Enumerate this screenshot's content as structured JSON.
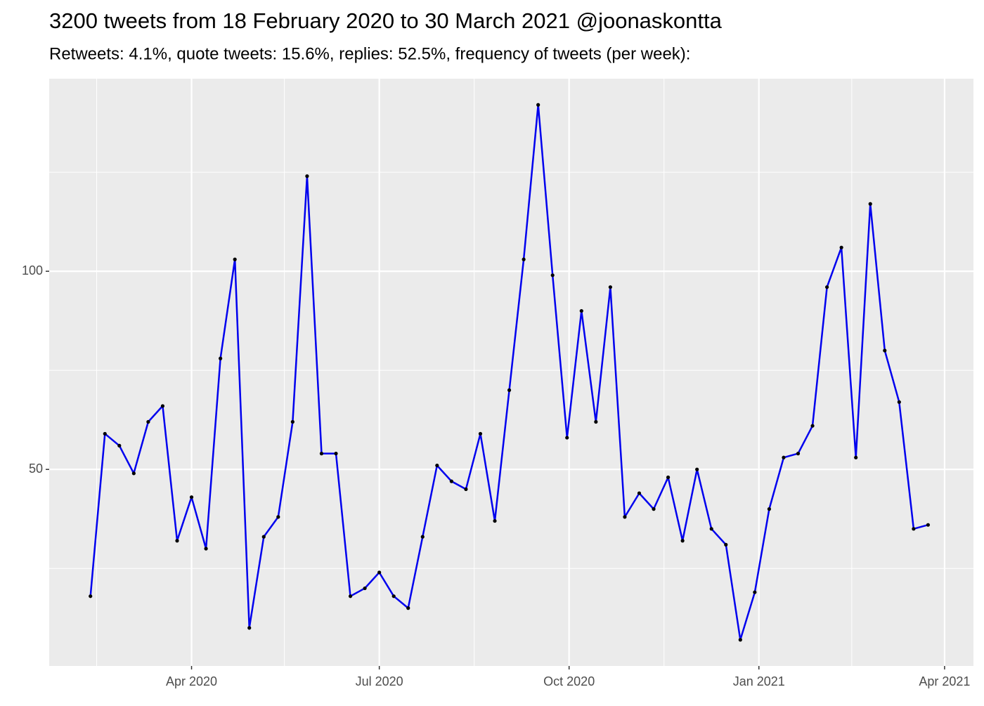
{
  "chart_data": {
    "type": "line",
    "title": "3200 tweets from 18 February 2020 to 30 March 2021 @joonaskontta",
    "subtitle": "Retweets: 4.1%, quote tweets: 15.6%, replies: 52.5%, frequency of tweets (per week):",
    "x": [
      "2020-02-12",
      "2020-02-19",
      "2020-02-26",
      "2020-03-04",
      "2020-03-11",
      "2020-03-18",
      "2020-03-25",
      "2020-04-01",
      "2020-04-08",
      "2020-04-15",
      "2020-04-22",
      "2020-04-29",
      "2020-05-06",
      "2020-05-13",
      "2020-05-20",
      "2020-05-27",
      "2020-06-03",
      "2020-06-10",
      "2020-06-17",
      "2020-06-24",
      "2020-07-01",
      "2020-07-08",
      "2020-07-15",
      "2020-07-22",
      "2020-07-29",
      "2020-08-05",
      "2020-08-12",
      "2020-08-19",
      "2020-08-26",
      "2020-09-02",
      "2020-09-09",
      "2020-09-16",
      "2020-09-23",
      "2020-09-30",
      "2020-10-07",
      "2020-10-14",
      "2020-10-21",
      "2020-10-28",
      "2020-11-04",
      "2020-11-11",
      "2020-11-18",
      "2020-11-25",
      "2020-12-02",
      "2020-12-09",
      "2020-12-16",
      "2020-12-23",
      "2020-12-30",
      "2021-01-06",
      "2021-01-13",
      "2021-01-20",
      "2021-01-27",
      "2021-02-03",
      "2021-02-10",
      "2021-02-17",
      "2021-02-24",
      "2021-03-03",
      "2021-03-10",
      "2021-03-17",
      "2021-03-24"
    ],
    "series": [
      {
        "color": "#0000ee",
        "values": [
          18,
          59,
          56,
          49,
          62,
          66,
          32,
          43,
          30,
          78,
          103,
          10,
          33,
          38,
          62,
          124,
          54,
          54,
          18,
          20,
          24,
          18,
          15,
          33,
          51,
          47,
          45,
          59,
          37,
          70,
          103,
          142,
          99,
          58,
          90,
          62,
          96,
          38,
          44,
          40,
          48,
          32,
          50,
          35,
          31,
          7,
          19,
          40,
          53,
          54,
          61,
          96,
          106,
          53,
          117,
          80,
          67,
          35,
          36
        ]
      }
    ],
    "point_color": "#000000",
    "xlim": [
      "2020-01-23",
      "2021-04-15"
    ],
    "xticks": [
      {
        "value": "2020-04-01",
        "label": "Apr 2020"
      },
      {
        "value": "2020-07-01",
        "label": "Jul 2020"
      },
      {
        "value": "2020-10-01",
        "label": "Oct 2020"
      },
      {
        "value": "2021-01-01",
        "label": "Jan 2021"
      },
      {
        "value": "2021-04-01",
        "label": "Apr 2021"
      }
    ],
    "xminor": [
      "2020-02-15",
      "2020-05-16",
      "2020-08-16",
      "2020-11-16",
      "2021-02-15"
    ],
    "ylim": [
      0.4,
      148.6
    ],
    "yticks": [
      50,
      100
    ],
    "yminor": [
      25,
      75,
      125
    ],
    "grid": true
  }
}
